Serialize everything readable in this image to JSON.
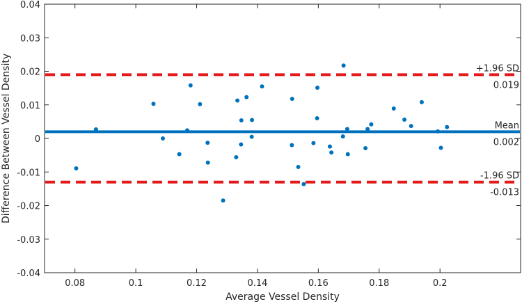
{
  "chart_data": {
    "type": "scatter",
    "title": "",
    "xlabel": "Average Vessel Density",
    "ylabel": "Difference Between Vessel Density",
    "xlim": [
      0.07,
      0.2265
    ],
    "ylim": [
      -0.04,
      0.04
    ],
    "xticks": [
      0.08,
      0.1,
      0.12,
      0.14,
      0.16,
      0.18,
      0.2
    ],
    "yticks": [
      -0.04,
      -0.03,
      -0.02,
      -0.01,
      0,
      0.01,
      0.02,
      0.03,
      0.04
    ],
    "xtick_labels": [
      "0.08",
      "0.1",
      "0.12",
      "0.14",
      "0.16",
      "0.18",
      "0.2"
    ],
    "ytick_labels": [
      "-0.04",
      "-0.03",
      "-0.02",
      "-0.01",
      "0",
      "0.01",
      "0.02",
      "0.03",
      "0.04"
    ],
    "grid": false,
    "colors": {
      "points": "#0072bd",
      "mean_line": "#0072bd",
      "limit_lines": "#e31a1c",
      "axis": "#262626"
    },
    "points": [
      {
        "x": 0.0804,
        "y": -0.0089
      },
      {
        "x": 0.0869,
        "y": 0.0027
      },
      {
        "x": 0.1058,
        "y": 0.0103
      },
      {
        "x": 0.1089,
        "y": 0.0
      },
      {
        "x": 0.1143,
        "y": -0.0047
      },
      {
        "x": 0.1169,
        "y": 0.0024
      },
      {
        "x": 0.118,
        "y": 0.0158
      },
      {
        "x": 0.1211,
        "y": 0.0102
      },
      {
        "x": 0.1236,
        "y": -0.0013
      },
      {
        "x": 0.1237,
        "y": -0.0072
      },
      {
        "x": 0.1287,
        "y": -0.0185
      },
      {
        "x": 0.133,
        "y": -0.0056
      },
      {
        "x": 0.1334,
        "y": 0.0113
      },
      {
        "x": 0.1346,
        "y": -0.0018
      },
      {
        "x": 0.1347,
        "y": 0.0054
      },
      {
        "x": 0.1364,
        "y": 0.0123
      },
      {
        "x": 0.1381,
        "y": 0.0005
      },
      {
        "x": 0.1382,
        "y": 0.0055
      },
      {
        "x": 0.1415,
        "y": 0.0155
      },
      {
        "x": 0.1513,
        "y": -0.002
      },
      {
        "x": 0.1514,
        "y": 0.0118
      },
      {
        "x": 0.1534,
        "y": -0.0085
      },
      {
        "x": 0.1552,
        "y": -0.0136
      },
      {
        "x": 0.1584,
        "y": -0.0014
      },
      {
        "x": 0.1596,
        "y": 0.006
      },
      {
        "x": 0.1597,
        "y": 0.0151
      },
      {
        "x": 0.1638,
        "y": -0.0024
      },
      {
        "x": 0.1643,
        "y": -0.0042
      },
      {
        "x": 0.1681,
        "y": 0.0006
      },
      {
        "x": 0.1683,
        "y": 0.0217
      },
      {
        "x": 0.1695,
        "y": 0.0028
      },
      {
        "x": 0.1697,
        "y": -0.0047
      },
      {
        "x": 0.1755,
        "y": -0.0029
      },
      {
        "x": 0.1762,
        "y": 0.0028
      },
      {
        "x": 0.1774,
        "y": 0.0042
      },
      {
        "x": 0.1848,
        "y": 0.0089
      },
      {
        "x": 0.1883,
        "y": 0.0056
      },
      {
        "x": 0.1905,
        "y": 0.0037
      },
      {
        "x": 0.194,
        "y": 0.0108
      },
      {
        "x": 0.1993,
        "y": 0.0021
      },
      {
        "x": 0.2003,
        "y": -0.0028
      },
      {
        "x": 0.2023,
        "y": 0.0034
      }
    ],
    "lines": [
      {
        "name": "+1.96 SD",
        "value": 0.019,
        "value_label": "0.019",
        "style": "dashed"
      },
      {
        "name": "Mean",
        "value": 0.002,
        "value_label": "0.002",
        "style": "solid"
      },
      {
        "name": "-1.96 SD",
        "value": -0.013,
        "value_label": "-0.013",
        "style": "dashed"
      }
    ]
  }
}
